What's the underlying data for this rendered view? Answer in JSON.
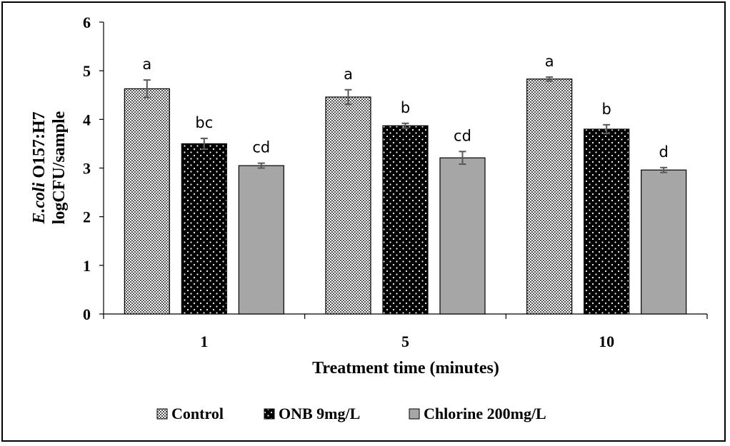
{
  "chart_data": {
    "type": "bar",
    "xlabel": "Treatment time (minutes)",
    "ylabel_italic": "E.coli",
    "ylabel_rest": " O157:H7",
    "ylabel_line2": "logCFU/sample",
    "ylim": [
      0,
      6
    ],
    "yticks": [
      0,
      1,
      2,
      3,
      4,
      5,
      6
    ],
    "categories": [
      "1",
      "5",
      "10"
    ],
    "grid": false,
    "legend_position": "bottom",
    "series": [
      {
        "name": "Control",
        "pattern": "dense-dots",
        "color": "#ffffff",
        "values": [
          4.63,
          4.46,
          4.83
        ],
        "errors": [
          0.18,
          0.15,
          0.04
        ],
        "labels": [
          "a",
          "a",
          "a"
        ]
      },
      {
        "name": "ONB 9mg/L",
        "pattern": "white-dots-on-black",
        "color": "#000000",
        "values": [
          3.5,
          3.87,
          3.8
        ],
        "errors": [
          0.11,
          0.05,
          0.09
        ],
        "labels": [
          "bc",
          "b",
          "b"
        ]
      },
      {
        "name": "Chlorine 200mg/L",
        "pattern": "solid",
        "color": "#a6a6a6",
        "values": [
          3.05,
          3.21,
          2.96
        ],
        "errors": [
          0.05,
          0.13,
          0.05
        ],
        "labels": [
          "cd",
          "cd",
          "d"
        ]
      }
    ]
  }
}
